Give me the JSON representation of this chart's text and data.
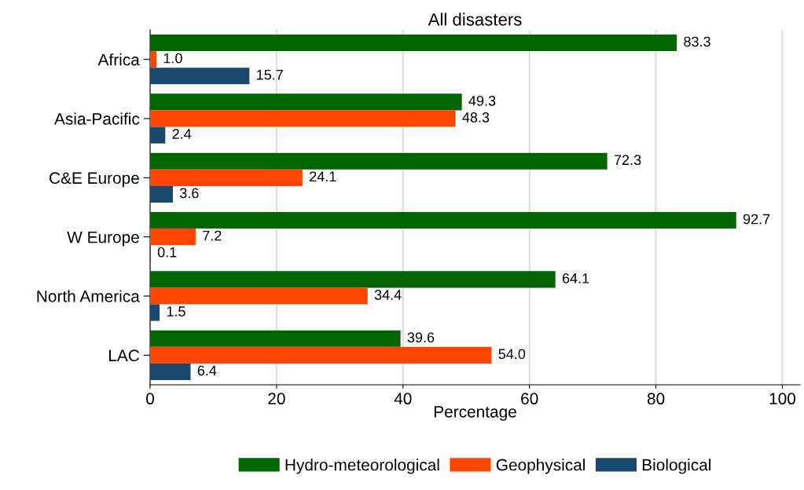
{
  "chart_data": {
    "type": "bar",
    "orientation": "horizontal",
    "title": "All disasters",
    "xlabel": "Percentage",
    "categories": [
      "Africa",
      "Asia-Pacific",
      "C&E Europe",
      "W Europe",
      "North America",
      "LAC"
    ],
    "series": [
      {
        "name": "Hydro-meteorological",
        "color": "#006400",
        "values": [
          83.3,
          49.3,
          72.3,
          92.7,
          64.1,
          39.6
        ],
        "value_labels": [
          "83.3",
          "49.3",
          "72.3",
          "92.7",
          "64.1",
          "39.6"
        ]
      },
      {
        "name": "Geophysical",
        "color": "#ff4500",
        "values": [
          1.0,
          48.3,
          24.1,
          7.2,
          34.4,
          54.0
        ],
        "value_labels": [
          "1.0",
          "48.3",
          "24.1",
          "7.2",
          "34.4",
          "54.0"
        ]
      },
      {
        "name": "Biological",
        "color": "#1a476f",
        "values": [
          15.7,
          2.4,
          3.6,
          0.1,
          1.5,
          6.4
        ],
        "value_labels": [
          "15.7",
          "2.4",
          "3.6",
          "0.1",
          "1.5",
          "6.4"
        ]
      }
    ],
    "xlim": [
      0,
      102.8
    ],
    "xticks": [
      0,
      20,
      40,
      60,
      80,
      100
    ],
    "grid": "x",
    "legend": "bottom"
  }
}
